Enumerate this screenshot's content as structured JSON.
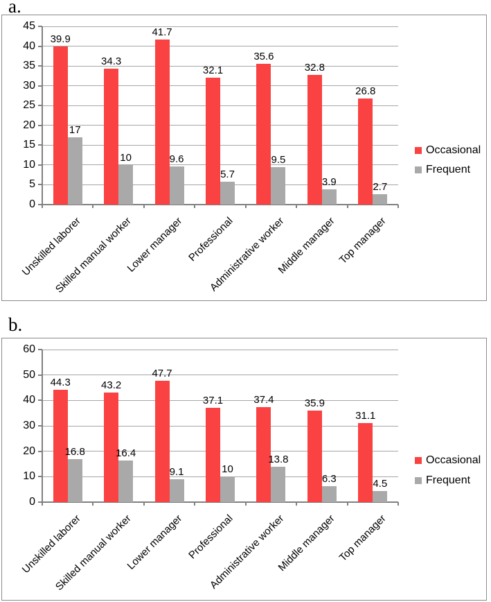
{
  "figure": {
    "panel_a_label": "a.",
    "panel_b_label": "b."
  },
  "colors": {
    "occasional": "#fa4243",
    "frequent": "#a9a9a9",
    "gridline": "#a6a6a6",
    "axis": "#808080",
    "panel_border": "#8a8a8a",
    "text": "#000000"
  },
  "chart_data": [
    {
      "id": "a",
      "type": "bar",
      "title": "",
      "xlabel": "",
      "ylabel": "",
      "categories": [
        "Unskilled laborer",
        "Skilled manual worker",
        "Lower manager",
        "Professional",
        "Administrative worker",
        "Middle manager",
        "Top manager"
      ],
      "series": [
        {
          "name": "Occasional",
          "color_key": "occasional",
          "values": [
            39.9,
            34.3,
            41.7,
            32.1,
            35.6,
            32.8,
            26.8
          ],
          "labels": [
            "39.9",
            "34.3",
            "41.7",
            "32.1",
            "35.6",
            "32.8",
            "26.8"
          ]
        },
        {
          "name": "Frequent",
          "color_key": "frequent",
          "values": [
            17,
            10,
            9.6,
            5.7,
            9.5,
            3.9,
            2.7
          ],
          "labels": [
            "17",
            "10",
            "9.6",
            "5.7",
            "9.5",
            "3.9",
            "2.7"
          ]
        }
      ],
      "ylim": [
        0,
        45
      ],
      "yticks": [
        0,
        5,
        10,
        15,
        20,
        25,
        30,
        35,
        40,
        45
      ],
      "grid": true,
      "legend": [
        "Occasional",
        "Frequent"
      ],
      "legend_position": "right"
    },
    {
      "id": "b",
      "type": "bar",
      "title": "",
      "xlabel": "",
      "ylabel": "",
      "categories": [
        "Unskilled laborer",
        "Skilled manual worker",
        "Lower manager",
        "Professional",
        "Administrative worker",
        "Middle manager",
        "Top manager"
      ],
      "series": [
        {
          "name": "Occasional",
          "color_key": "occasional",
          "values": [
            44.3,
            43.2,
            47.7,
            37.1,
            37.4,
            35.9,
            31.1
          ],
          "labels": [
            "44.3",
            "43.2",
            "47.7",
            "37.1",
            "37.4",
            "35.9",
            "31.1"
          ]
        },
        {
          "name": "Frequent",
          "color_key": "frequent",
          "values": [
            16.8,
            16.4,
            9.1,
            10,
            13.8,
            6.3,
            4.5
          ],
          "labels": [
            "16.8",
            "16.4",
            "9.1",
            "10",
            "13.8",
            "6.3",
            "4.5"
          ]
        }
      ],
      "ylim": [
        0,
        60
      ],
      "yticks": [
        0,
        10,
        20,
        30,
        40,
        50,
        60
      ],
      "grid": true,
      "legend": [
        "Occasional",
        "Frequent"
      ],
      "legend_position": "right"
    }
  ]
}
